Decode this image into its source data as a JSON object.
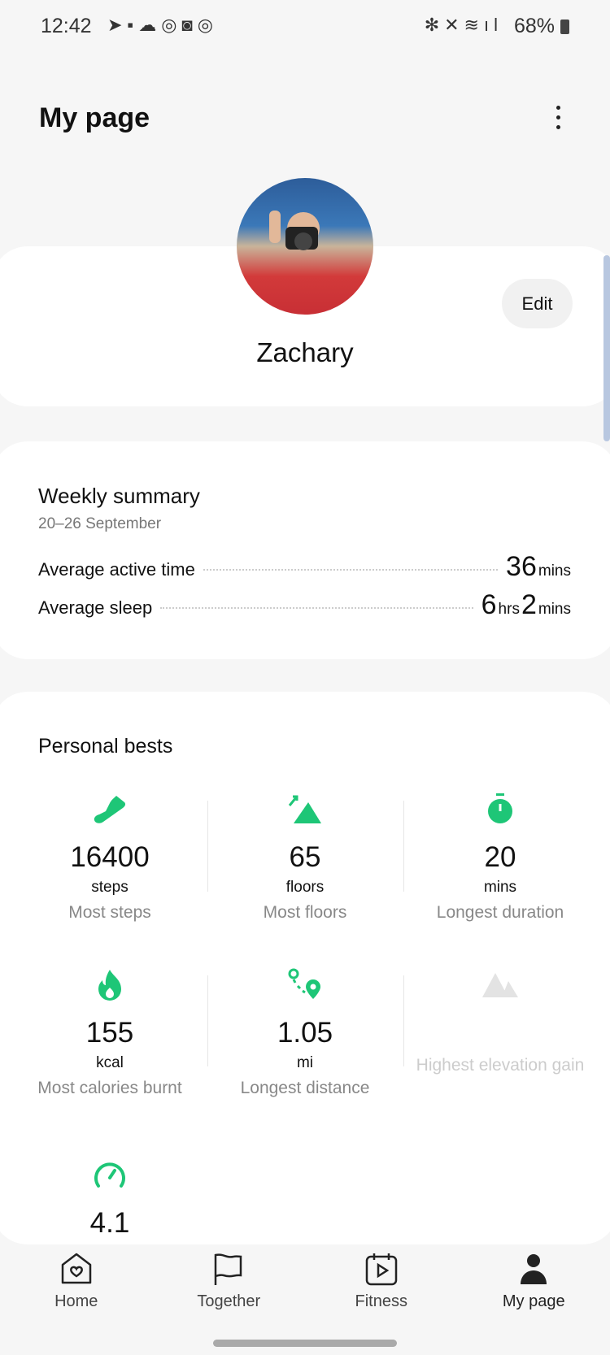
{
  "status_bar": {
    "time": "12:42",
    "notif_icons": [
      "telegram-icon",
      "news-icon",
      "weather-icon",
      "app-icon",
      "instagram-icon",
      "app-icon"
    ],
    "battery": "68%"
  },
  "header": {
    "title": "My page",
    "more_icon": "more-vertical-icon"
  },
  "profile": {
    "name": "Zachary",
    "edit_label": "Edit"
  },
  "weekly": {
    "title": "Weekly summary",
    "date_range": "20–26 September",
    "active": {
      "label": "Average active time",
      "value": "36",
      "unit": "mins"
    },
    "sleep": {
      "label": "Average sleep",
      "hrs": "6",
      "hrs_unit": "hrs",
      "mins": "2",
      "mins_unit": "mins"
    }
  },
  "personal_bests": {
    "title": "Personal bests",
    "accent": "#1ec677",
    "items": [
      {
        "icon": "shoe-icon",
        "value": "16400",
        "unit": "steps",
        "label": "Most steps"
      },
      {
        "icon": "mountain-up-icon",
        "value": "65",
        "unit": "floors",
        "label": "Most floors"
      },
      {
        "icon": "stopwatch-icon",
        "value": "20",
        "unit": "mins",
        "label": "Longest duration"
      },
      {
        "icon": "flame-icon",
        "value": "155",
        "unit": "kcal",
        "label": "Most calories burnt"
      },
      {
        "icon": "route-icon",
        "value": "1.05",
        "unit": "mi",
        "label": "Longest distance"
      },
      {
        "icon": "mountain-icon",
        "value": "",
        "unit": "",
        "label": "Highest elevation gain",
        "disabled": true
      },
      {
        "icon": "speedometer-icon",
        "value": "4.1",
        "unit": "",
        "label": ""
      }
    ]
  },
  "nav": {
    "items": [
      {
        "label": "Home"
      },
      {
        "label": "Together"
      },
      {
        "label": "Fitness"
      },
      {
        "label": "My page",
        "active": true
      }
    ]
  }
}
